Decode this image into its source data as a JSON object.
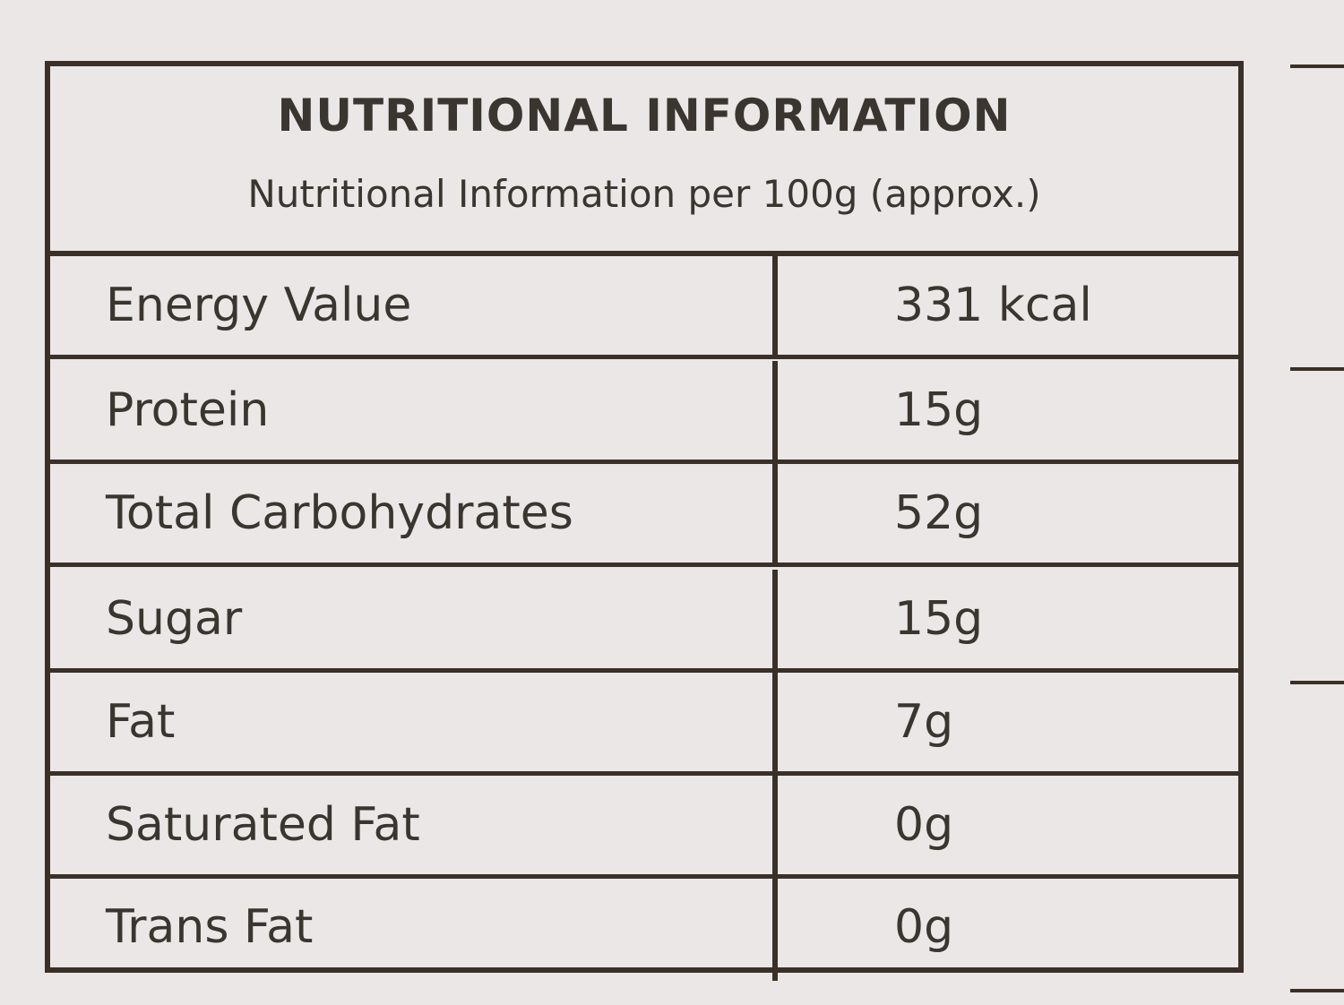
{
  "header": {
    "title": "NUTRITIONAL INFORMATION",
    "subtitle": "Nutritional Information per 100g (approx.)"
  },
  "table": {
    "rows": [
      [
        "Energy Value",
        "331 kcal"
      ],
      [
        "Protein",
        "15g"
      ],
      [
        "Total Carbohydrates",
        "52g"
      ],
      [
        "Sugar",
        "15g"
      ],
      [
        "Fat",
        "7g"
      ],
      [
        "Saturated Fat",
        "0g"
      ],
      [
        "Trans Fat",
        "0g"
      ]
    ]
  }
}
